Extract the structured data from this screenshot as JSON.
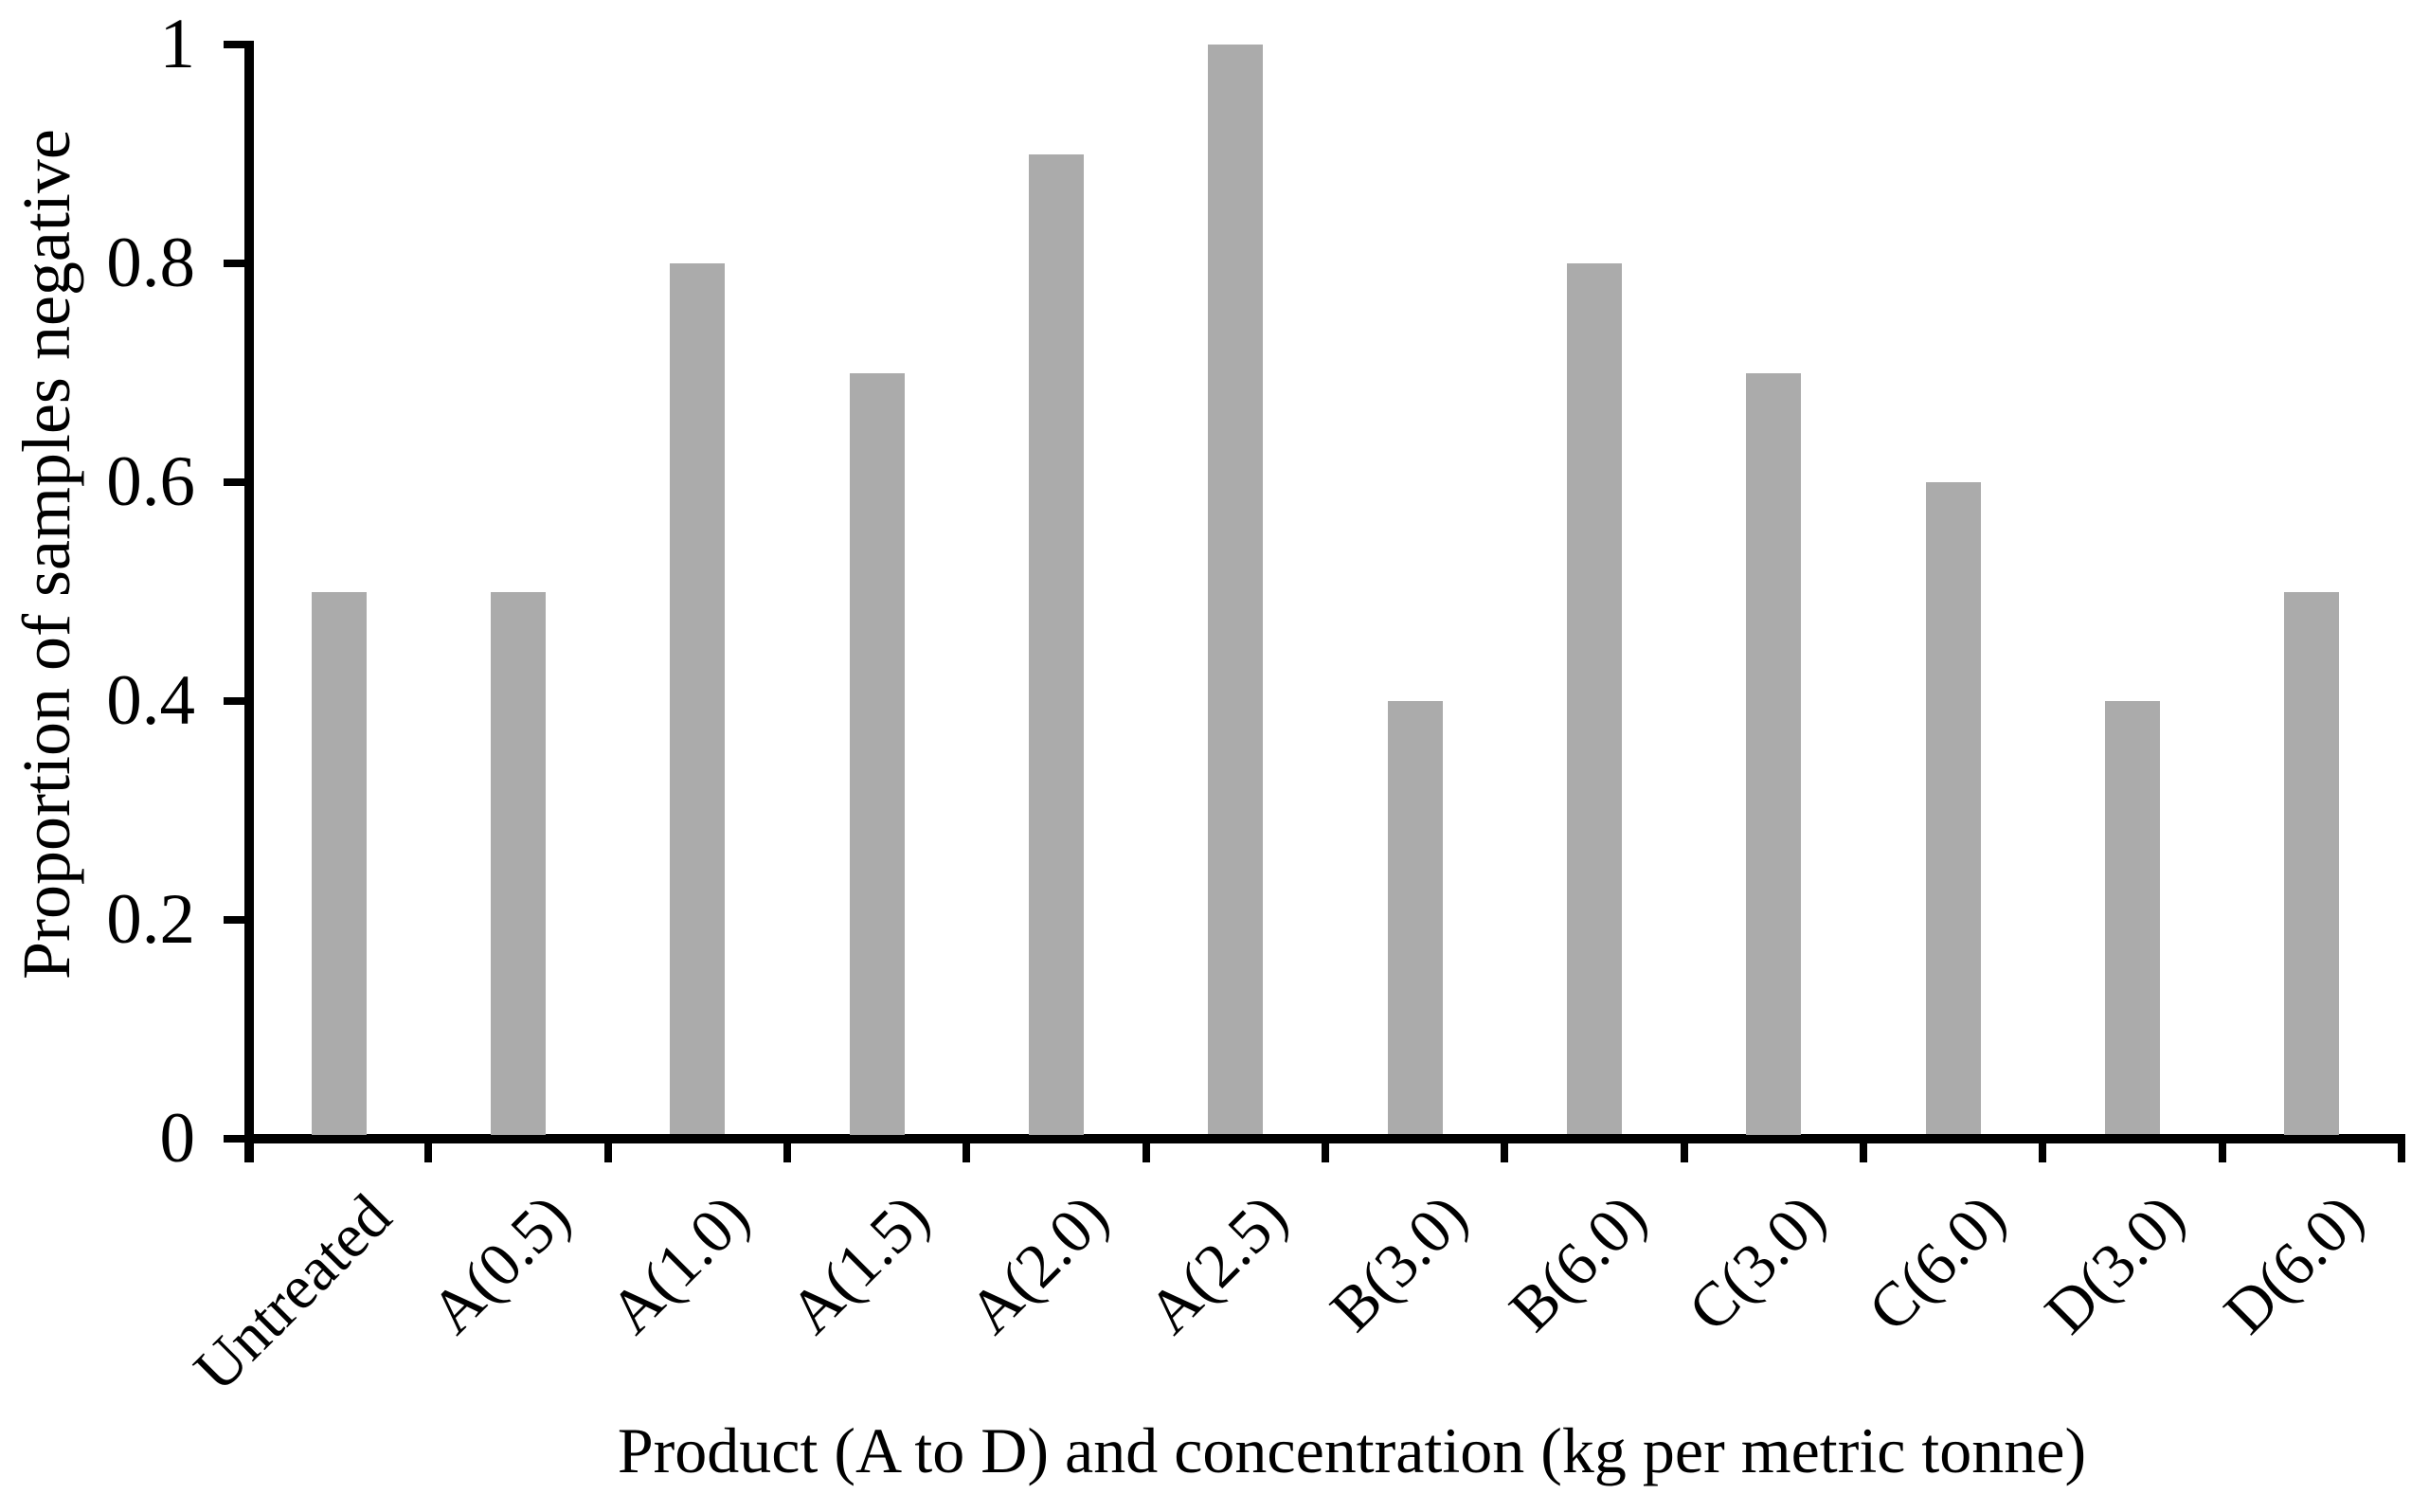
{
  "figure": {
    "background_color": "#FFFFFF",
    "bar_color": "#ABABAB",
    "axis_color": "#000000",
    "text_color": "#000000"
  },
  "chart_data": {
    "type": "bar",
    "bar_orientation": "vertical",
    "title": "",
    "xlabel": "Product (A to D) and concentration (kg per metric tonne)",
    "ylabel": "Proportion of samples negative",
    "categories": [
      "Untreated",
      "A(0.5)",
      "A(1.0)",
      "A(1.5)",
      "A(2.0)",
      "A(2.5)",
      "B(3.0)",
      "B(6.0)",
      "C(3.0)",
      "C(6.0)",
      "D(3.0)",
      "D(6.0)"
    ],
    "values": [
      0.5,
      0.5,
      0.8,
      0.7,
      0.9,
      1.0,
      0.4,
      0.8,
      0.7,
      0.6,
      0.4,
      0.5
    ],
    "ylim": [
      0,
      1
    ],
    "yticks": [
      0,
      0.2,
      0.4,
      0.6,
      0.8,
      1
    ],
    "ytick_labels": [
      "0",
      "0.2",
      "0.4",
      "0.6",
      "0.8",
      "1"
    ],
    "x_tick_label_rotation_deg": -45,
    "grid": false,
    "legend": "none"
  }
}
